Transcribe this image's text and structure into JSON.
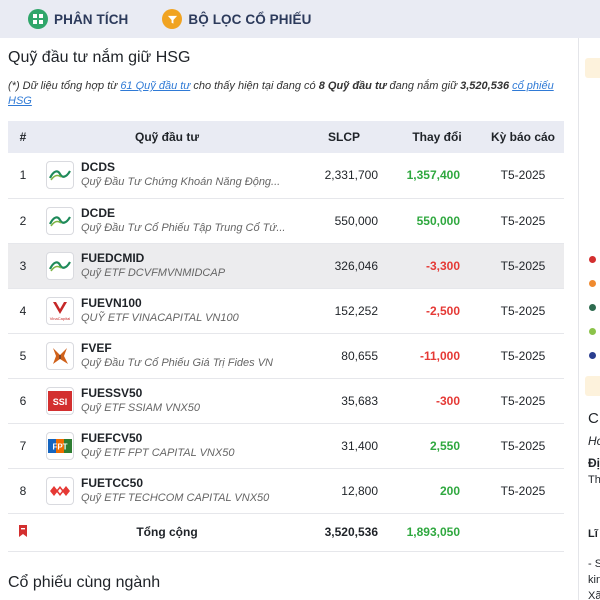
{
  "nav": {
    "analysis_label": "PHÂN TÍCH",
    "filter_label": "BỘ LỌC CỔ PHIẾU"
  },
  "section": {
    "title": "Quỹ đầu tư nắm giữ HSG",
    "intro_prefix": "(*) Dữ liệu tổng hợp từ ",
    "intro_link": "61 Quỹ đầu tư",
    "intro_mid": " cho thấy hiện tại đang có ",
    "intro_bold1": "8 Quỹ đầu tư",
    "intro_mid2": " đang nắm giữ ",
    "intro_bold2": "3,520,536",
    "intro_link2": "cổ phiếu HSG"
  },
  "table": {
    "headers": {
      "num": "#",
      "fund": "Quỹ đầu tư",
      "slcp": "SLCP",
      "change": "Thay đổi",
      "period": "Kỳ báo cáo"
    },
    "rows": [
      {
        "num": "1",
        "code": "DCDS",
        "name": "Quỹ Đầu Tư Chứng Khoán Năng Động...",
        "slcp": "2,331,700",
        "change": "1,357,400",
        "period": "T5-2025"
      },
      {
        "num": "2",
        "code": "DCDE",
        "name": "Quỹ Đầu Tư Cổ Phiếu Tập Trung Cổ Tứ...",
        "slcp": "550,000",
        "change": "550,000",
        "period": "T5-2025"
      },
      {
        "num": "3",
        "code": "FUEDCMID",
        "name": "Quỹ ETF DCVFMVNMIDCAP",
        "slcp": "326,046",
        "change": "-3,300",
        "period": "T5-2025"
      },
      {
        "num": "4",
        "code": "FUEVN100",
        "name": "QUỸ ETF VINACAPITAL VN100",
        "slcp": "152,252",
        "change": "-2,500",
        "period": "T5-2025"
      },
      {
        "num": "5",
        "code": "FVEF",
        "name": "Quỹ Đầu Tư Cổ Phiếu Giá Trị Fides VN",
        "slcp": "80,655",
        "change": "-11,000",
        "period": "T5-2025"
      },
      {
        "num": "6",
        "code": "FUESSV50",
        "name": "Quỹ ETF SSIAM VNX50",
        "slcp": "35,683",
        "change": "-300",
        "period": "T5-2025"
      },
      {
        "num": "7",
        "code": "FUEFCV50",
        "name": "Quỹ ETF FPT CAPITAL VNX50",
        "slcp": "31,400",
        "change": "2,550",
        "period": "T5-2025"
      },
      {
        "num": "8",
        "code": "FUETCC50",
        "name": "Quỹ ETF TECHCOM CAPITAL VNX50",
        "slcp": "12,800",
        "change": "200",
        "period": "T5-2025"
      }
    ],
    "total": {
      "label": "Tổng cộng",
      "slcp": "3,520,536",
      "change": "1,893,050"
    }
  },
  "section2": {
    "title": "Cổ phiếu cùng ngành"
  },
  "logos": {
    "vinacapital_text": "VinaCapital",
    "ssi_text": "SSI",
    "fpt_text": "FPT"
  },
  "right_panel": {
    "letter_c": "C",
    "letter_h": "Ho",
    "letter_d": "Đị",
    "letter_t": "Th",
    "letter_l": "Lĩ",
    "dash": "- S",
    "kin": "kin",
    "xa": "Xã"
  },
  "colors": {
    "positive": "#2fa83f",
    "negative": "#e53935",
    "link": "#2f7ad6"
  }
}
